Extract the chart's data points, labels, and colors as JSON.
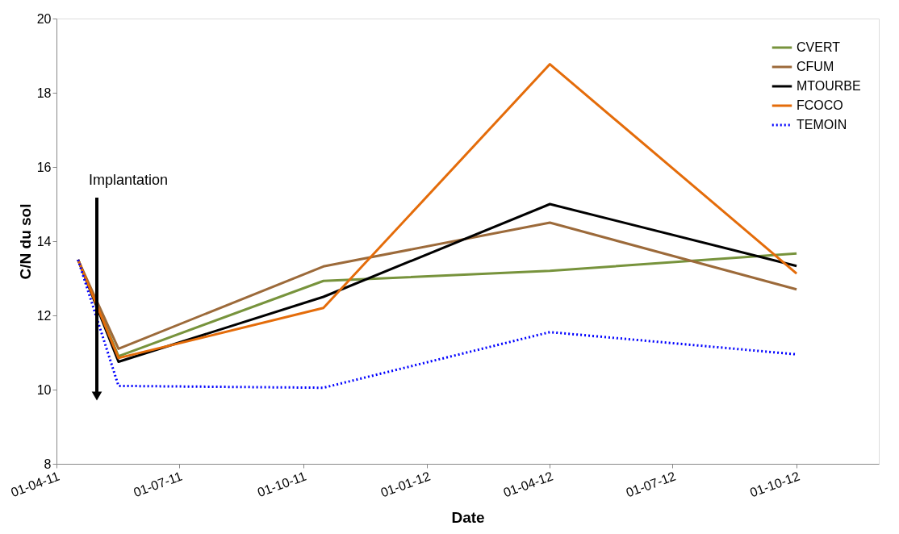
{
  "chart_data": {
    "type": "line",
    "xlabel": "Date",
    "ylabel": "C/N du sol",
    "x": [
      "2011-04-17",
      "2011-05-17",
      "2011-10-16",
      "2012-04-01",
      "2012-10-01"
    ],
    "series": [
      {
        "name": "CVERT",
        "color": "#77933c",
        "line_style": "solid",
        "values": [
          13.5,
          10.9,
          12.93,
          13.2,
          13.67
        ]
      },
      {
        "name": "CFUM",
        "color": "#9c6a3a",
        "line_style": "solid",
        "values": [
          13.5,
          11.1,
          13.32,
          14.5,
          12.7
        ]
      },
      {
        "name": "MTOURBE",
        "color": "#000000",
        "line_style": "solid",
        "values": [
          13.5,
          10.75,
          12.5,
          15.0,
          13.33
        ]
      },
      {
        "name": "FCOCO",
        "color": "#e46c0a",
        "line_style": "solid",
        "values": [
          13.5,
          10.85,
          12.2,
          18.77,
          13.13
        ]
      },
      {
        "name": "TEMOIN",
        "color": "#0000ff",
        "line_style": "dotted",
        "values": [
          13.5,
          10.1,
          10.05,
          11.55,
          10.95
        ]
      }
    ],
    "xlim": [
      "2011-04-01",
      "2012-12-01"
    ],
    "xticks": [
      {
        "value": "2011-04-01",
        "label": "01-04-11"
      },
      {
        "value": "2011-07-01",
        "label": "01-07-11"
      },
      {
        "value": "2011-10-01",
        "label": "01-10-11"
      },
      {
        "value": "2012-01-01",
        "label": "01-01-12"
      },
      {
        "value": "2012-04-01",
        "label": "01-04-12"
      },
      {
        "value": "2012-07-01",
        "label": "01-07-12"
      },
      {
        "value": "2012-10-01",
        "label": "01-10-12"
      }
    ],
    "ylim": [
      8,
      20
    ],
    "yticks": [
      8,
      10,
      12,
      14,
      16,
      18,
      20
    ],
    "annotations": [
      "Implantation"
    ],
    "legend": "top right",
    "grid": false,
    "marker": "none"
  }
}
